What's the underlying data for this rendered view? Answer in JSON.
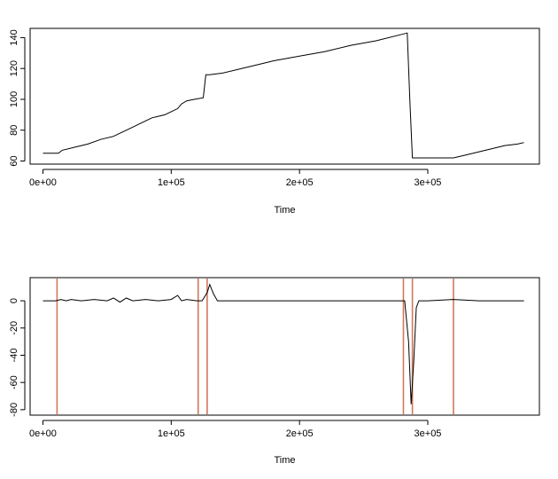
{
  "chart_data": [
    {
      "type": "line",
      "xlabel": "Time",
      "ylabel": "",
      "xlim": [
        -10000,
        387000
      ],
      "ylim": [
        58,
        146
      ],
      "x_ticks": [
        0,
        100000,
        200000,
        300000
      ],
      "x_tick_labels": [
        "0e+00",
        "1e+05",
        "2e+05",
        "3e+05"
      ],
      "y_ticks": [
        60,
        80,
        100,
        120,
        140
      ],
      "y_tick_labels": [
        "60",
        "80",
        "100",
        "120",
        "140"
      ],
      "grid": false,
      "series": [
        {
          "color": "#000000",
          "x": [
            0,
            12000,
            15000,
            25000,
            35000,
            45000,
            55000,
            60000,
            65000,
            70000,
            75000,
            80000,
            85000,
            90000,
            95000,
            100000,
            105000,
            108000,
            112000,
            118000,
            125000,
            127000,
            130000,
            140000,
            160000,
            180000,
            200000,
            220000,
            240000,
            260000,
            284000,
            286000,
            288000,
            300000,
            320000,
            330000,
            340000,
            350000,
            360000,
            370000,
            375000
          ],
          "y": [
            65,
            65,
            67,
            69,
            71,
            74,
            76,
            78,
            80,
            82,
            84,
            86,
            88,
            89,
            90,
            92,
            94,
            97,
            99,
            100,
            101,
            116,
            116,
            117,
            121,
            125,
            128,
            131,
            135,
            138,
            143,
            100,
            62,
            62,
            62,
            64,
            66,
            68,
            70,
            71,
            72
          ]
        }
      ]
    },
    {
      "type": "line",
      "xlabel": "Time",
      "ylabel": "",
      "xlim": [
        -10000,
        387000
      ],
      "ylim": [
        -84,
        17
      ],
      "x_ticks": [
        0,
        100000,
        200000,
        300000
      ],
      "x_tick_labels": [
        "0e+00",
        "1e+05",
        "2e+05",
        "3e+05"
      ],
      "y_ticks": [
        0,
        -20,
        -40,
        -60,
        -80
      ],
      "y_tick_labels": [
        "0",
        "-20",
        "-40",
        "-60",
        "-80"
      ],
      "grid": false,
      "series": [
        {
          "color": "#000000",
          "x": [
            0,
            10000,
            14000,
            18000,
            22000,
            30000,
            40000,
            50000,
            55000,
            60000,
            65000,
            70000,
            80000,
            90000,
            100000,
            105000,
            108000,
            112000,
            120000,
            124000,
            128000,
            130000,
            133000,
            136000,
            140000,
            160000,
            200000,
            240000,
            270000,
            282000,
            285000,
            287000,
            289000,
            291000,
            293000,
            300000,
            320000,
            340000,
            360000,
            375000
          ],
          "y": [
            0,
            0,
            1,
            0,
            1,
            0,
            1,
            0,
            2,
            -1,
            2,
            0,
            1,
            0,
            1,
            4,
            0,
            1,
            0,
            0,
            6,
            12,
            5,
            0,
            0,
            0,
            0,
            0,
            0,
            0,
            -30,
            -76,
            -45,
            -5,
            0,
            0,
            1,
            0,
            0,
            0
          ]
        }
      ],
      "vlines": {
        "color": "#d2775a",
        "x": [
          11000,
          121000,
          128000,
          281000,
          288000,
          320000
        ]
      }
    }
  ]
}
